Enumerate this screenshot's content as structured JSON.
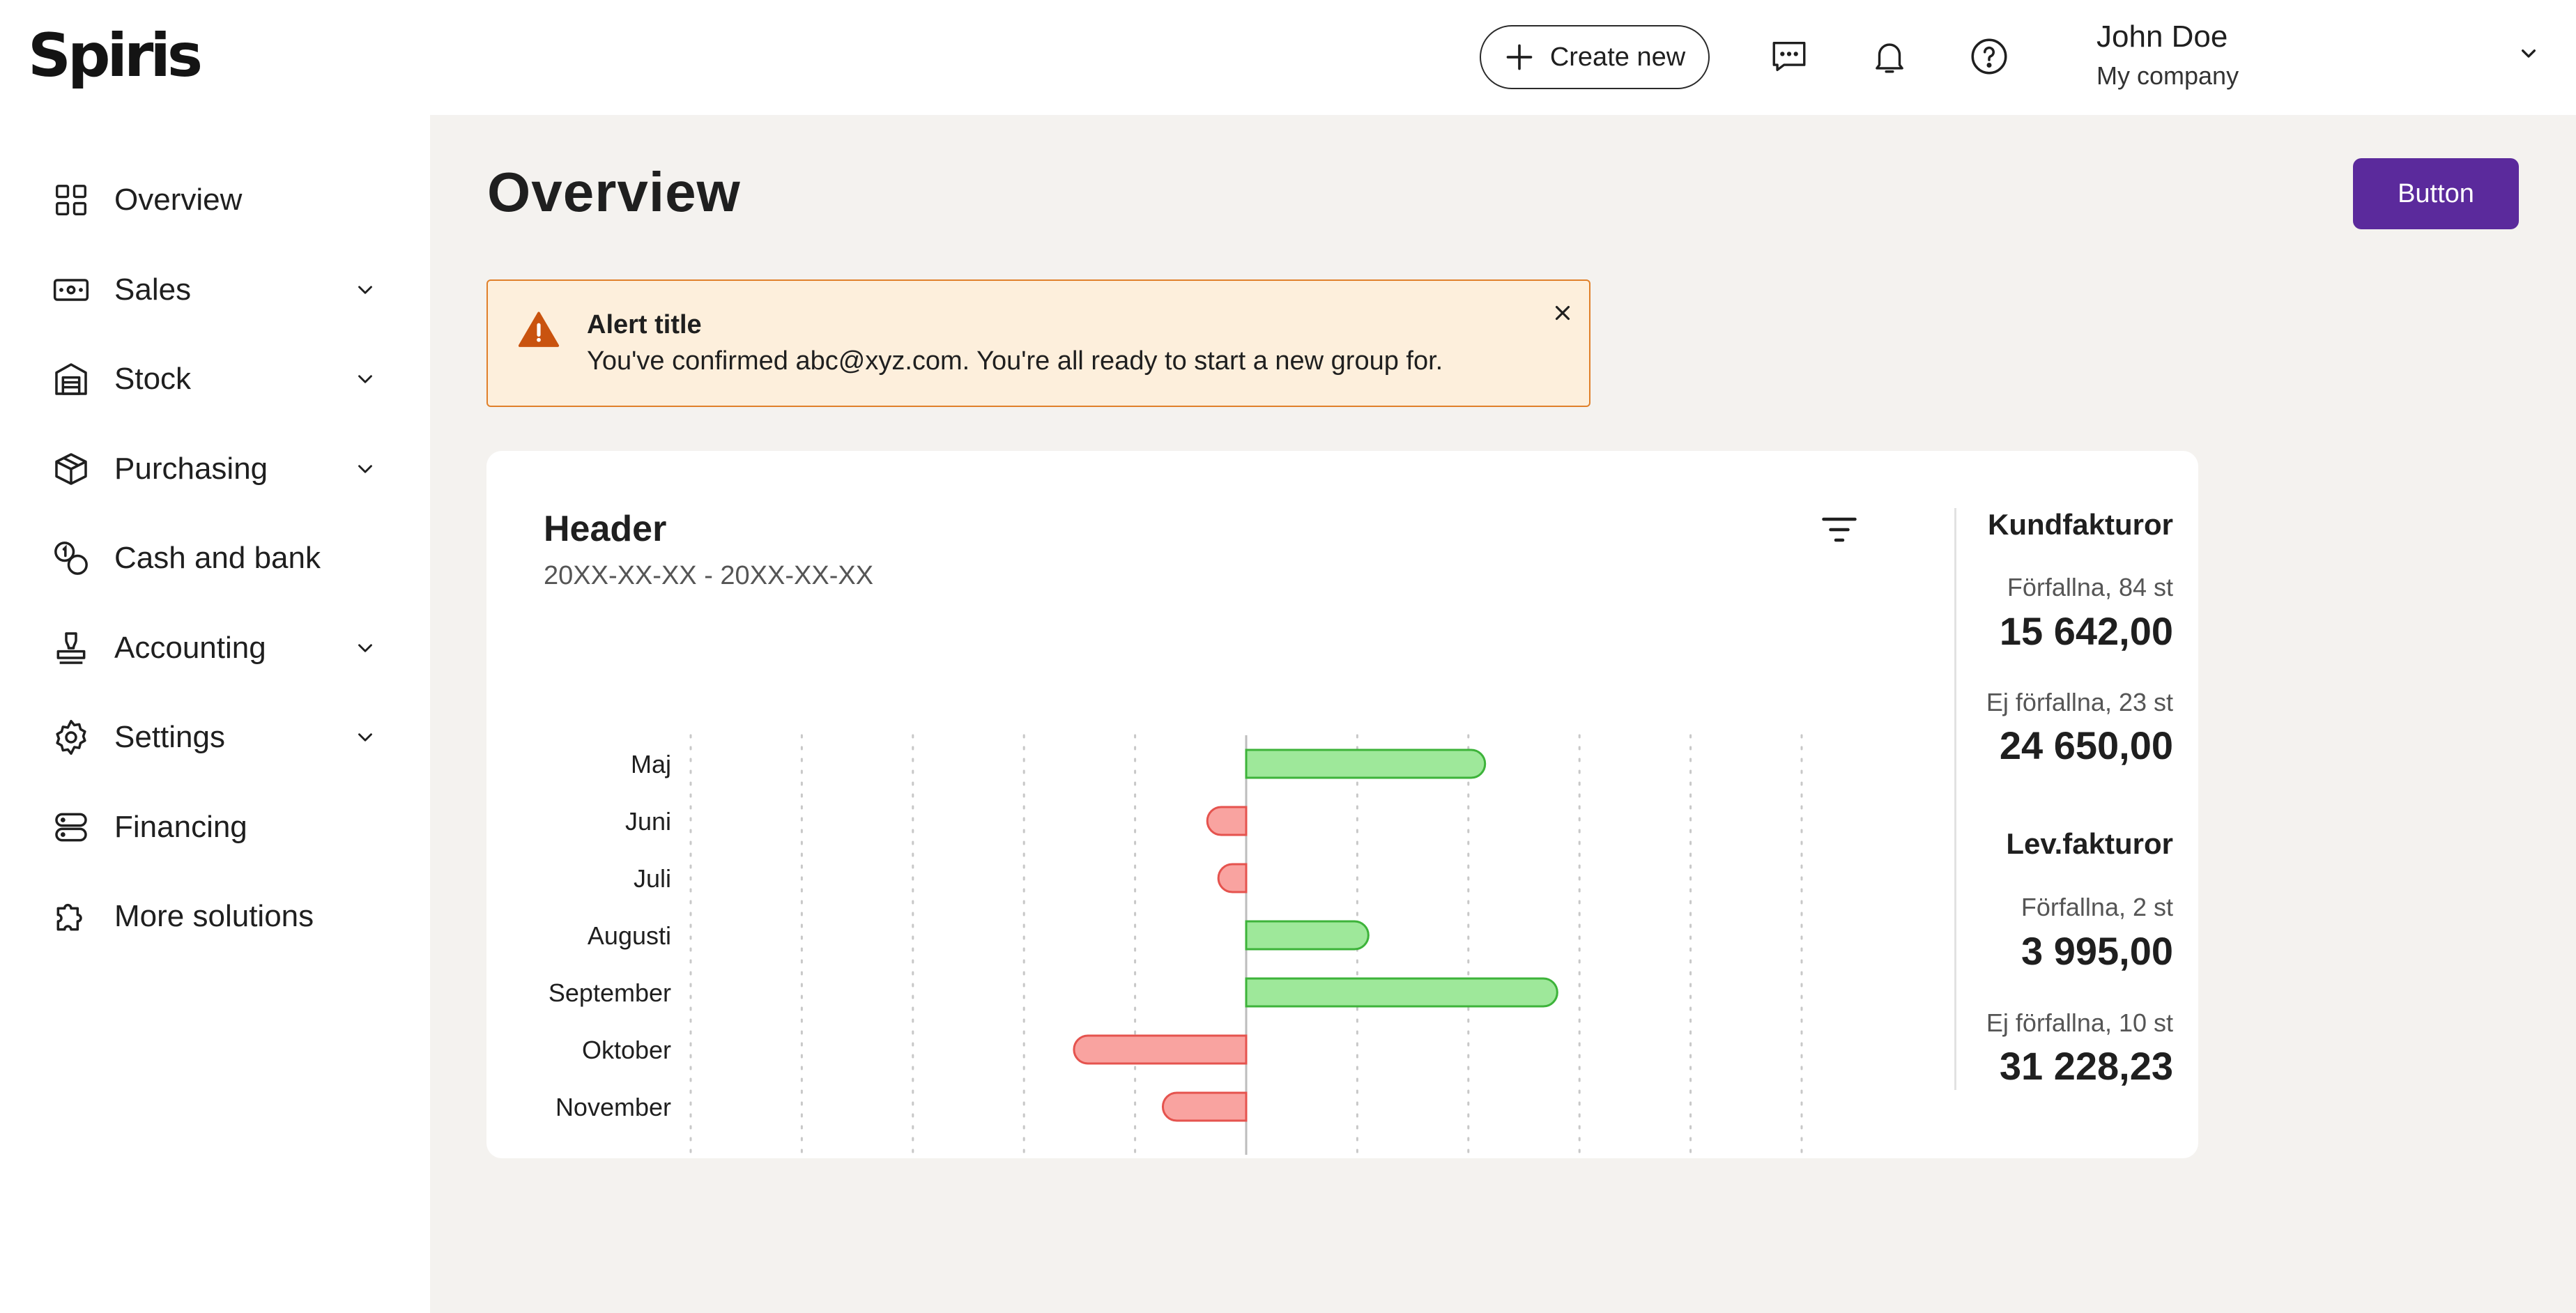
{
  "app": {
    "logo": "Spiris"
  },
  "topbar": {
    "create_label": "Create new",
    "user_name": "John Doe",
    "user_company": "My company",
    "icons": [
      "chat-icon",
      "bell-icon",
      "help-icon"
    ]
  },
  "sidebar": {
    "items": [
      {
        "label": "Overview",
        "icon": "grid-icon",
        "expandable": false
      },
      {
        "label": "Sales",
        "icon": "cash-icon",
        "expandable": true
      },
      {
        "label": "Stock",
        "icon": "warehouse-icon",
        "expandable": true
      },
      {
        "label": "Purchasing",
        "icon": "package-icon",
        "expandable": true
      },
      {
        "label": "Cash and bank",
        "icon": "coins-icon",
        "expandable": false
      },
      {
        "label": "Accounting",
        "icon": "stamp-icon",
        "expandable": true
      },
      {
        "label": "Settings",
        "icon": "gear-icon",
        "expandable": true
      },
      {
        "label": "Financing",
        "icon": "server-icon",
        "expandable": false
      },
      {
        "label": "More solutions",
        "icon": "puzzle-icon",
        "expandable": false
      }
    ]
  },
  "main": {
    "title": "Overview",
    "button_label": "Button",
    "alert": {
      "title": "Alert title",
      "body": "You've confirmed abc@xyz.com. You're all ready to start a new group for."
    },
    "card": {
      "header": "Header",
      "subheader": "20XX-XX-XX - 20XX-XX-XX"
    },
    "stats": {
      "kund_title": "Kundfakturor",
      "kund_overdue_label": "Förfallna, 84 st",
      "kund_overdue_value": "15 642,00",
      "kund_notdue_label": "Ej förfallna, 23 st",
      "kund_notdue_value": "24 650,00",
      "lev_title": "Lev.fakturor",
      "lev_overdue_label": "Förfallna, 2 st",
      "lev_overdue_value": "3 995,00",
      "lev_notdue_label": "Ej förfallna, 10 st",
      "lev_notdue_value": "31 228,23"
    }
  },
  "colors": {
    "accent": "#5b2a9c",
    "positive_fill": "#9ee89a",
    "positive_stroke": "#3db33a",
    "negative_fill": "#f9a3a0",
    "negative_stroke": "#e5534e",
    "alert_bg": "#fdefdc",
    "alert_border": "#e0802a"
  },
  "chart_data": {
    "type": "bar",
    "orientation": "horizontal",
    "categories": [
      "Maj",
      "Juni",
      "Juli",
      "Augusti",
      "September",
      "Oktober",
      "November"
    ],
    "values": [
      2150,
      -350,
      -250,
      1100,
      2800,
      -1550,
      -750
    ],
    "xlim": [
      -5000,
      5000
    ],
    "xticks": [
      "-5.000",
      "-4.000",
      "-3.000",
      "-2.000",
      "-1.000",
      "0",
      "1.000",
      "2.000",
      "3.000",
      "4.000",
      "5.000"
    ],
    "grid": true
  }
}
